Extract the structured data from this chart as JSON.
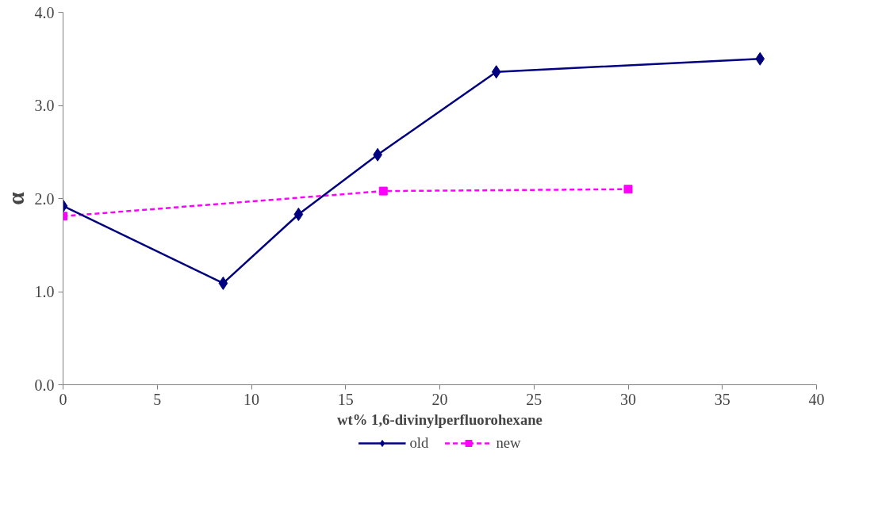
{
  "chart_data": {
    "type": "line",
    "xlabel": "wt% 1,6-divinylperfluorohexane",
    "ylabel": "α",
    "xlim": [
      0,
      40
    ],
    "xticks": [
      0,
      5,
      10,
      15,
      20,
      25,
      30,
      35,
      40
    ],
    "ylim": [
      0,
      4
    ],
    "yticks": [
      {
        "value": 0,
        "label": "0.0"
      },
      {
        "value": 1,
        "label": "1.0"
      },
      {
        "value": 2,
        "label": "2.0"
      },
      {
        "value": 3,
        "label": "3.0"
      },
      {
        "value": 4,
        "label": "4.0"
      }
    ],
    "grid": false,
    "legend": "bottom",
    "series": [
      {
        "name": "old",
        "color": "#000080",
        "marker": "diamond",
        "line_style": "solid",
        "x": [
          0,
          8.5,
          12.5,
          16.7,
          23,
          37
        ],
        "values": [
          1.92,
          1.09,
          1.83,
          2.47,
          3.36,
          3.5
        ]
      },
      {
        "name": "new",
        "color": "#ff00ff",
        "marker": "square",
        "line_style": "dashed",
        "x": [
          0,
          17,
          30
        ],
        "values": [
          1.81,
          2.08,
          2.1
        ]
      }
    ]
  }
}
